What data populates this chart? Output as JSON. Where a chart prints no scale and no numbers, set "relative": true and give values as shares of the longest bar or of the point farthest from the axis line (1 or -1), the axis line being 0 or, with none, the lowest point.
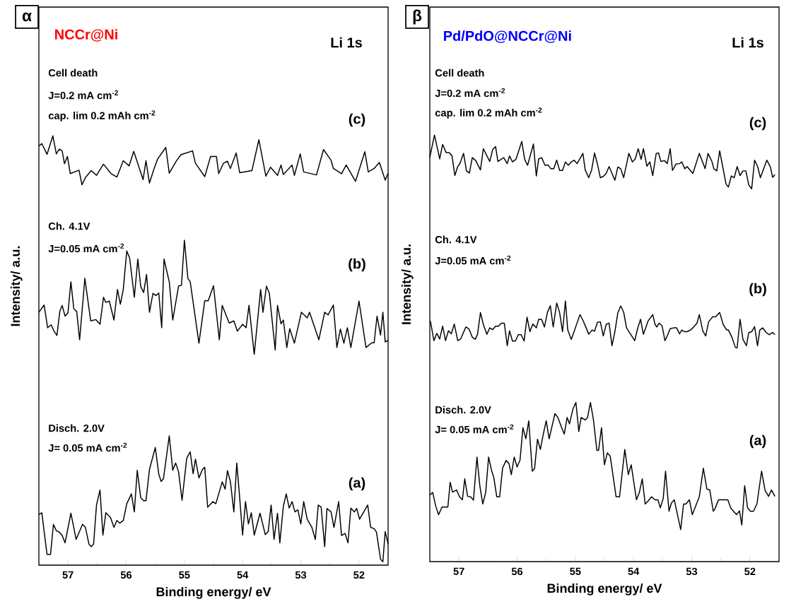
{
  "chart_data": [
    {
      "type": "line",
      "title": "NCCr@Ni",
      "xlabel": "Binding energy/ eV",
      "ylabel": "Intensity/ a.u.",
      "relative": true,
      "xlim": [
        57.5,
        51.5
      ],
      "xticks": [
        57,
        56,
        55,
        54,
        53,
        52
      ],
      "annotations": [
        "α",
        "Li 1s",
        "Cell death",
        "J=0.2 mA cm$^{-2}$",
        "cap. lim 0.2 mAh cm$^{-2}$",
        "Ch. 4.1V",
        "J=0.05 mA cm$^{-2}$",
        "Disch. 2.0V",
        "J= 0.05 mA cm$^{-2}$"
      ],
      "series": [
        {
          "name": "(a)",
          "color": "#000000",
          "x": [
            57.5,
            57.45,
            57.36,
            57.3,
            57.25,
            57.2,
            57.15,
            57.1,
            57.05,
            56.95,
            56.86,
            56.75,
            56.7,
            56.64,
            56.6,
            56.56,
            56.51,
            56.45,
            56.4,
            56.35,
            56.27,
            56.21,
            56.16,
            56.11,
            56.05,
            55.99,
            55.91,
            55.86,
            55.81,
            55.75,
            55.7,
            55.66,
            55.6,
            55.5,
            55.44,
            55.4,
            55.36,
            55.26,
            55.2,
            55.15,
            55.1,
            55.04,
            54.96,
            54.9,
            54.85,
            54.81,
            54.75,
            54.69,
            54.65,
            54.6,
            54.51,
            54.46,
            54.35,
            54.3,
            54.26,
            54.21,
            54.15,
            54.1,
            54.05,
            54.0,
            53.95,
            53.9,
            53.85,
            53.8,
            53.7,
            53.61,
            53.56,
            53.51,
            53.46,
            53.4,
            53.36,
            53.3,
            53.25,
            53.2,
            53.15,
            53.1,
            53.05,
            53.0,
            52.95,
            52.89,
            52.81,
            52.75,
            52.7,
            52.65,
            52.59,
            52.55,
            52.48,
            52.43,
            52.35,
            52.3,
            52.24,
            52.19,
            52.14,
            52.08,
            52.04,
            51.99,
            51.85,
            51.8,
            51.74,
            51.7,
            51.63,
            51.59,
            51.55,
            51.5
          ],
          "values": [
            0.118,
            0.122,
            0.025,
            0.025,
            0.095,
            0.08,
            0.077,
            0.069,
            0.052,
            0.121,
            0.06,
            0.095,
            0.088,
            0.049,
            0.043,
            0.049,
            0.14,
            0.175,
            0.07,
            0.122,
            0.111,
            0.088,
            0.104,
            0.098,
            0.104,
            0.143,
            0.166,
            0.124,
            0.221,
            0.157,
            0.15,
            0.15,
            0.223,
            0.274,
            0.212,
            0.195,
            0.201,
            0.301,
            0.221,
            0.238,
            0.217,
            0.151,
            0.249,
            0.264,
            0.213,
            0.247,
            0.203,
            0.223,
            0.228,
            0.135,
            0.148,
            0.143,
            0.194,
            0.177,
            0.22,
            0.195,
            0.124,
            0.238,
            0.157,
            0.07,
            0.148,
            0.096,
            0.122,
            0.07,
            0.121,
            0.071,
            0.078,
            0.14,
            0.06,
            0.121,
            0.052,
            0.137,
            0.166,
            0.133,
            0.148,
            0.124,
            0.129,
            0.096,
            0.148,
            0.107,
            0.088,
            0.06,
            0.14,
            0.135,
            0.043,
            0.132,
            0.124,
            0.088,
            0.148,
            0.069,
            0.074,
            0.052,
            0.133,
            0.124,
            0.132,
            0.107,
            0.14,
            0.088,
            0.085,
            0.077,
            0.014,
            0.008,
            0.078,
            0.049
          ]
        },
        {
          "name": "(b)",
          "color": "#000000",
          "x": [
            57.5,
            57.41,
            57.35,
            57.29,
            57.24,
            57.19,
            57.14,
            57.1,
            57.05,
            57.0,
            56.95,
            56.9,
            56.85,
            56.8,
            56.71,
            56.61,
            56.52,
            56.45,
            56.39,
            56.35,
            56.29,
            56.21,
            56.15,
            56.1,
            56.05,
            55.99,
            55.94,
            55.86,
            55.8,
            55.75,
            55.7,
            55.65,
            55.6,
            55.54,
            55.49,
            55.44,
            55.39,
            55.35,
            55.26,
            55.2,
            55.1,
            55.05,
            55.0,
            54.94,
            54.9,
            54.75,
            54.65,
            54.59,
            54.5,
            54.4,
            54.35,
            54.23,
            54.15,
            54.09,
            54.0,
            53.94,
            53.89,
            53.8,
            53.69,
            53.65,
            53.59,
            53.54,
            53.44,
            53.4,
            53.34,
            53.3,
            53.24,
            53.19,
            53.11,
            52.99,
            52.89,
            52.85,
            52.69,
            52.59,
            52.53,
            52.44,
            52.38,
            52.32,
            52.26,
            52.2,
            52.14,
            52.0,
            51.88,
            51.78,
            51.74,
            51.69,
            51.63,
            51.59,
            51.55,
            51.5
          ],
          "values": [
            0.589,
            0.606,
            0.553,
            0.56,
            0.545,
            0.535,
            0.591,
            0.605,
            0.58,
            0.588,
            0.66,
            0.597,
            0.591,
            0.525,
            0.668,
            0.569,
            0.572,
            0.561,
            0.624,
            0.612,
            0.615,
            0.571,
            0.642,
            0.608,
            0.642,
            0.732,
            0.715,
            0.624,
            0.713,
            0.649,
            0.635,
            0.677,
            0.589,
            0.633,
            0.628,
            0.634,
            0.553,
            0.713,
            0.66,
            0.571,
            0.65,
            0.652,
            0.757,
            0.668,
            0.66,
            0.517,
            0.616,
            0.616,
            0.651,
            0.525,
            0.605,
            0.564,
            0.569,
            0.545,
            0.561,
            0.553,
            0.605,
            0.491,
            0.642,
            0.589,
            0.65,
            0.633,
            0.501,
            0.605,
            0.562,
            0.571,
            0.507,
            0.551,
            0.517,
            0.589,
            0.576,
            0.589,
            0.525,
            0.589,
            0.583,
            0.606,
            0.507,
            0.55,
            0.517,
            0.553,
            0.507,
            0.615,
            0.507,
            0.518,
            0.518,
            0.58,
            0.536,
            0.589,
            0.52,
            0.523
          ]
        },
        {
          "name": "(c)",
          "color": "#000000",
          "x": [
            57.5,
            57.45,
            57.36,
            57.26,
            57.2,
            57.15,
            57.1,
            57.06,
            57.01,
            56.96,
            56.81,
            56.76,
            56.7,
            56.6,
            56.51,
            56.39,
            56.26,
            56.16,
            56.05,
            55.95,
            55.87,
            55.71,
            55.66,
            55.6,
            55.52,
            55.46,
            55.32,
            55.26,
            55.14,
            55.06,
            54.86,
            54.81,
            54.65,
            54.55,
            54.45,
            54.41,
            54.33,
            54.26,
            54.21,
            54.11,
            54.05,
            53.84,
            53.72,
            53.6,
            53.52,
            53.4,
            53.34,
            53.3,
            53.15,
            53.11,
            53.01,
            52.95,
            52.73,
            52.61,
            52.48,
            52.44,
            52.3,
            52.22,
            52.06,
            51.9,
            51.84,
            51.74,
            51.65,
            51.55,
            51.5
          ],
          "values": [
            0.976,
            0.982,
            0.957,
            1.0,
            0.958,
            0.969,
            0.965,
            0.935,
            0.952,
            0.912,
            0.92,
            0.886,
            0.903,
            0.919,
            0.908,
            0.934,
            0.912,
            0.904,
            0.942,
            0.93,
            0.964,
            0.898,
            0.942,
            0.89,
            0.924,
            0.946,
            0.973,
            0.913,
            0.941,
            0.956,
            0.965,
            0.936,
            0.905,
            0.952,
            0.952,
            0.912,
            0.936,
            0.941,
            0.924,
            0.96,
            0.914,
            0.919,
            0.991,
            0.906,
            0.927,
            0.908,
            0.932,
            0.91,
            0.932,
            0.908,
            0.958,
            0.916,
            0.909,
            0.968,
            0.943,
            0.924,
            0.912,
            0.932,
            0.894,
            0.963,
            0.916,
            0.924,
            0.938,
            0.897,
            0.913
          ]
        }
      ]
    },
    {
      "type": "line",
      "title": "Pd/PdO@NCCr@Ni",
      "xlabel": "Binding energy/ eV",
      "ylabel": "Intensity/ a.u.",
      "relative": true,
      "xlim": [
        57.5,
        51.5
      ],
      "xticks": [
        57,
        56,
        55,
        54,
        53,
        52
      ],
      "annotations": [
        "β",
        "Li 1s",
        "Cell death",
        "J=0.2 mA cm$^{-2}$",
        "cap. lim 0.2 mAh cm$^{-2}$",
        "Ch. 4.1V",
        "J=0.05 mA cm$^{-2}$",
        "Disch. 2.0V",
        "J= 0.05 mA cm$^{-2}$"
      ],
      "series": [
        {
          "name": "(a)",
          "color": "#000000",
          "x": [
            57.5,
            57.45,
            57.4,
            57.35,
            57.29,
            57.19,
            57.15,
            57.11,
            57.04,
            56.99,
            56.94,
            56.9,
            56.85,
            56.8,
            56.75,
            56.69,
            56.64,
            56.59,
            56.54,
            56.49,
            56.44,
            56.4,
            56.35,
            56.3,
            56.25,
            56.19,
            56.14,
            56.1,
            56.05,
            56.0,
            55.95,
            55.9,
            55.85,
            55.8,
            55.74,
            55.7,
            55.65,
            55.6,
            55.55,
            55.5,
            55.45,
            55.35,
            55.3,
            55.24,
            55.19,
            55.14,
            55.1,
            55.04,
            54.99,
            54.94,
            54.9,
            54.83,
            54.79,
            54.74,
            54.69,
            54.63,
            54.6,
            54.55,
            54.5,
            54.45,
            54.4,
            54.3,
            54.24,
            54.15,
            54.09,
            54.04,
            53.95,
            53.9,
            53.85,
            53.8,
            53.75,
            53.69,
            53.63,
            53.58,
            53.54,
            53.49,
            53.45,
            53.39,
            53.35,
            53.3,
            53.19,
            53.14,
            53.1,
            53.04,
            52.99,
            52.93,
            52.87,
            52.8,
            52.74,
            52.69,
            52.63,
            52.6,
            52.54,
            52.38,
            52.33,
            52.3,
            52.23,
            52.18,
            52.14,
            52.09,
            52.04,
            51.99,
            51.94,
            51.88,
            51.8,
            51.74,
            51.68,
            51.63,
            51.57
          ],
          "values": [
            0.156,
            0.162,
            0.131,
            0.11,
            0.128,
            0.128,
            0.186,
            0.163,
            0.168,
            0.152,
            0.145,
            0.194,
            0.153,
            0.152,
            0.144,
            0.245,
            0.177,
            0.135,
            0.162,
            0.245,
            0.214,
            0.197,
            0.152,
            0.152,
            0.219,
            0.237,
            0.23,
            0.204,
            0.245,
            0.222,
            0.238,
            0.314,
            0.288,
            0.33,
            0.212,
            0.218,
            0.287,
            0.263,
            0.299,
            0.33,
            0.288,
            0.347,
            0.338,
            0.316,
            0.299,
            0.338,
            0.323,
            0.358,
            0.373,
            0.305,
            0.338,
            0.332,
            0.338,
            0.373,
            0.334,
            0.261,
            0.261,
            0.314,
            0.227,
            0.255,
            0.247,
            0.152,
            0.152,
            0.263,
            0.204,
            0.227,
            0.145,
            0.162,
            0.194,
            0.135,
            0.142,
            0.152,
            0.145,
            0.145,
            0.126,
            0.148,
            0.212,
            0.118,
            0.137,
            0.145,
            0.075,
            0.135,
            0.135,
            0.145,
            0.11,
            0.131,
            0.152,
            0.219,
            0.17,
            0.168,
            0.118,
            0.124,
            0.145,
            0.145,
            0.126,
            0.121,
            0.11,
            0.119,
            0.086,
            0.178,
            0.126,
            0.118,
            0.118,
            0.135,
            0.212,
            0.167,
            0.153,
            0.168,
            0.153
          ]
        },
        {
          "name": "(b)",
          "color": "#000000",
          "x": [
            57.49,
            57.43,
            57.38,
            57.33,
            57.28,
            57.23,
            57.18,
            57.13,
            57.08,
            57.02,
            56.97,
            56.88,
            56.83,
            56.77,
            56.72,
            56.68,
            56.63,
            56.58,
            56.52,
            56.47,
            56.42,
            56.37,
            56.32,
            56.27,
            56.22,
            56.17,
            56.13,
            56.08,
            56.03,
            55.98,
            55.93,
            55.88,
            55.83,
            55.78,
            55.73,
            55.67,
            55.63,
            55.58,
            55.53,
            55.48,
            55.43,
            55.38,
            55.32,
            55.27,
            55.22,
            55.17,
            55.13,
            55.07,
            55.02,
            54.92,
            54.87,
            54.82,
            54.77,
            54.71,
            54.67,
            54.62,
            54.57,
            54.52,
            54.47,
            54.42,
            54.37,
            54.32,
            54.27,
            54.22,
            54.17,
            54.12,
            53.98,
            53.93,
            53.88,
            53.83,
            53.75,
            53.67,
            53.63,
            53.6,
            53.56,
            53.51,
            53.46,
            53.42,
            53.37,
            53.31,
            53.26,
            53.21,
            53.17,
            53.13,
            53.08,
            53.02,
            52.96,
            52.91,
            52.87,
            52.81,
            52.76,
            52.71,
            52.64,
            52.59,
            52.52,
            52.46,
            52.4,
            52.37,
            52.31,
            52.25,
            52.22,
            52.17,
            52.12,
            52.06,
            52.02,
            51.97,
            51.92,
            51.87,
            51.83,
            51.78,
            51.72,
            51.67,
            51.61,
            51.57
          ],
          "values": [
            0.564,
            0.518,
            0.535,
            0.522,
            0.552,
            0.518,
            0.541,
            0.534,
            0.557,
            0.518,
            0.522,
            0.55,
            0.546,
            0.526,
            0.521,
            0.533,
            0.584,
            0.556,
            0.533,
            0.548,
            0.544,
            0.552,
            0.552,
            0.559,
            0.559,
            0.506,
            0.541,
            0.517,
            0.517,
            0.532,
            0.532,
            0.517,
            0.573,
            0.539,
            0.557,
            0.548,
            0.568,
            0.568,
            0.55,
            0.584,
            0.6,
            0.55,
            0.606,
            0.584,
            0.539,
            0.611,
            0.543,
            0.521,
            0.54,
            0.579,
            0.566,
            0.55,
            0.533,
            0.543,
            0.54,
            0.561,
            0.562,
            0.529,
            0.556,
            0.559,
            0.506,
            0.539,
            0.583,
            0.599,
            0.585,
            0.548,
            0.518,
            0.546,
            0.568,
            0.533,
            0.564,
            0.579,
            0.556,
            0.55,
            0.559,
            0.553,
            0.518,
            0.529,
            0.546,
            0.548,
            0.548,
            0.534,
            0.543,
            0.539,
            0.539,
            0.543,
            0.551,
            0.559,
            0.579,
            0.541,
            0.529,
            0.562,
            0.574,
            0.574,
            0.584,
            0.556,
            0.543,
            0.543,
            0.526,
            0.502,
            0.501,
            0.568,
            0.521,
            0.506,
            0.537,
            0.539,
            0.551,
            0.506,
            0.543,
            0.548,
            0.537,
            0.532,
            0.537,
            0.532
          ]
        },
        {
          "name": "(c)",
          "color": "#000000",
          "x": [
            57.5,
            57.42,
            57.33,
            57.28,
            57.22,
            57.17,
            57.12,
            57.07,
            57.02,
            56.98,
            56.92,
            56.87,
            56.82,
            56.77,
            56.71,
            56.63,
            56.58,
            56.47,
            56.42,
            56.37,
            56.33,
            56.23,
            56.17,
            56.13,
            56.08,
            56.02,
            55.92,
            55.87,
            55.82,
            55.72,
            55.67,
            55.63,
            55.58,
            55.52,
            55.47,
            55.42,
            55.37,
            55.32,
            55.27,
            55.22,
            55.17,
            55.12,
            55.07,
            55.02,
            54.97,
            54.87,
            54.83,
            54.77,
            54.72,
            54.67,
            54.62,
            54.57,
            54.52,
            54.47,
            54.42,
            54.37,
            54.32,
            54.27,
            54.22,
            54.17,
            54.08,
            54.02,
            53.97,
            53.92,
            53.87,
            53.83,
            53.77,
            53.72,
            53.67,
            53.61,
            53.57,
            53.53,
            53.47,
            53.42,
            53.37,
            53.33,
            53.27,
            53.21,
            53.17,
            53.12,
            53.08,
            52.98,
            52.87,
            52.77,
            52.72,
            52.65,
            52.62,
            52.57,
            52.52,
            52.41,
            52.37,
            52.32,
            52.27,
            52.22,
            52.17,
            52.12,
            52.07,
            52.02,
            51.97,
            51.92,
            51.87,
            51.82,
            51.71,
            51.65,
            51.61,
            51.57
          ],
          "values": [
            0.948,
            1.0,
            0.944,
            0.978,
            0.959,
            0.959,
            0.952,
            0.905,
            0.926,
            0.934,
            0.957,
            0.916,
            0.911,
            0.947,
            0.94,
            0.918,
            0.968,
            0.938,
            0.966,
            0.973,
            0.938,
            0.947,
            0.933,
            0.951,
            0.937,
            0.943,
            0.985,
            0.943,
            0.929,
            0.979,
            0.904,
            0.944,
            0.947,
            0.929,
            0.93,
            0.921,
            0.921,
            0.941,
            0.917,
            0.917,
            0.937,
            0.929,
            0.937,
            0.941,
            0.933,
            0.957,
            0.918,
            0.9,
            0.918,
            0.958,
            0.932,
            0.9,
            0.903,
            0.91,
            0.926,
            0.91,
            0.894,
            0.925,
            0.921,
            0.9,
            0.957,
            0.937,
            0.944,
            0.968,
            0.943,
            0.968,
            0.927,
            0.937,
            0.905,
            0.957,
            0.958,
            0.938,
            0.94,
            0.933,
            0.968,
            0.917,
            0.932,
            0.933,
            0.937,
            0.921,
            0.926,
            0.91,
            0.957,
            0.921,
            0.957,
            0.937,
            0.921,
            0.916,
            0.963,
            0.885,
            0.878,
            0.904,
            0.9,
            0.926,
            0.905,
            0.916,
            0.916,
            0.883,
            0.874,
            0.941,
            0.927,
            0.9,
            0.941,
            0.926,
            0.901,
            0.907
          ]
        }
      ]
    }
  ]
}
